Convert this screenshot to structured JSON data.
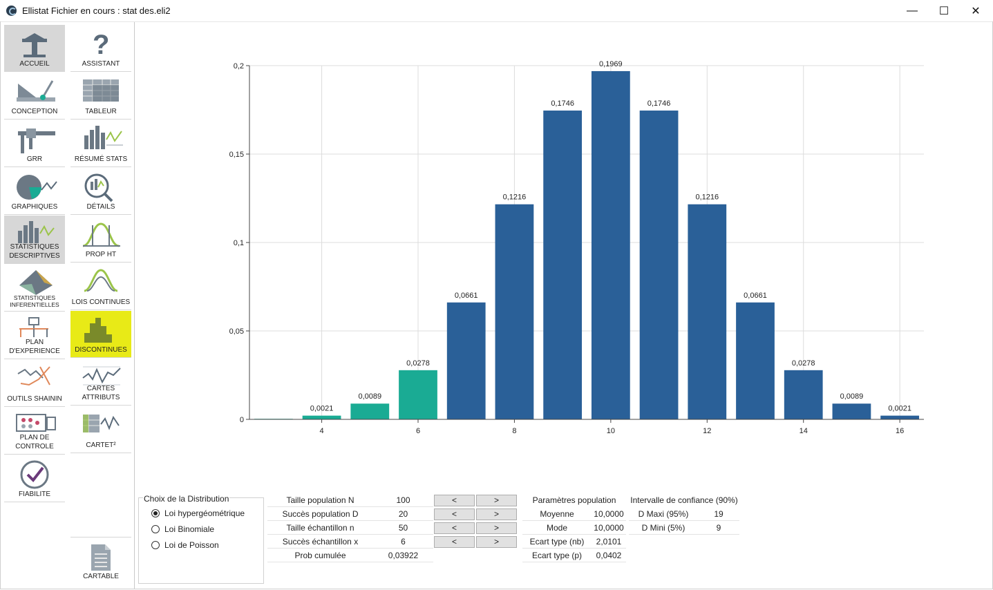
{
  "window": {
    "title": "Ellistat Fichier en cours : stat des.eli2",
    "minimize": "—",
    "maximize": "☐",
    "close": "✕"
  },
  "nav_col1": [
    {
      "label": "ACCUEIL",
      "icon": "home-icon"
    },
    {
      "label": "CONCEPTION",
      "icon": "design-tools-icon"
    },
    {
      "label": "GRR",
      "icon": "caliper-icon"
    },
    {
      "label": "GRAPHIQUES",
      "icon": "pie-chart-icon"
    },
    {
      "label": "STATISTIQUES DESCRIPTIVES",
      "icon": "bar-chart-icon"
    },
    {
      "label": "STATISTIQUES INFERENTIELLES",
      "icon": "surface-3d-icon"
    },
    {
      "label": "PLAN D'EXPERIENCE",
      "icon": "tree-diagram-icon"
    },
    {
      "label": "OUTILS SHAININ",
      "icon": "line-cross-icon"
    },
    {
      "label": "PLAN DE CONTROLE",
      "icon": "control-plan-icon"
    },
    {
      "label": "FIABILITE",
      "icon": "check-circle-icon"
    }
  ],
  "nav_col2": [
    {
      "label": "ASSISTANT",
      "icon": "question-icon"
    },
    {
      "label": "TABLEUR",
      "icon": "spreadsheet-icon"
    },
    {
      "label": "RÉSUMÉ STATS",
      "icon": "stats-summary-icon"
    },
    {
      "label": "DÉTAILS",
      "icon": "magnifier-chart-icon"
    },
    {
      "label": "PROP HT",
      "icon": "bell-curve-icon"
    },
    {
      "label": "LOIS CONTINUES",
      "icon": "continuous-law-icon"
    },
    {
      "label": "DISCONTINUES",
      "icon": "histogram-icon"
    },
    {
      "label": "CARTES ATTRIBUTS",
      "icon": "attribute-chart-icon"
    },
    {
      "label": "CARTET²",
      "icon": "cartet-icon"
    },
    {
      "label": "CARTABLE",
      "icon": "document-icon"
    }
  ],
  "colors": {
    "main": "#2a6098",
    "highlight": "#1aab94",
    "grid": "#dcdcdc",
    "nav_highlight": "#e8ea17"
  },
  "chart_data": {
    "type": "bar",
    "x": [
      3,
      4,
      5,
      6,
      7,
      8,
      9,
      10,
      11,
      12,
      13,
      14,
      15,
      16
    ],
    "values": [
      0.0003,
      0.0021,
      0.0089,
      0.0278,
      0.0661,
      0.1216,
      0.1746,
      0.1969,
      0.1746,
      0.1216,
      0.0661,
      0.0278,
      0.0089,
      0.0021
    ],
    "data_labels": [
      "",
      "0,0021",
      "0,0089",
      "0,0278",
      "0,0661",
      "0,1216",
      "0,1746",
      "0,1969",
      "0,1746",
      "0,1216",
      "0,0661",
      "0,0278",
      "0,0089",
      "0,0021"
    ],
    "highlighted_x": [
      3,
      4,
      5,
      6
    ],
    "x_ticks": [
      "4",
      "6",
      "8",
      "10",
      "12",
      "14",
      "16"
    ],
    "y_ticks": [
      "0",
      "0,05",
      "0,1",
      "0,15",
      "0,2"
    ],
    "ylim": [
      0,
      0.2
    ],
    "grid": true
  },
  "distribution": {
    "title": "Choix de la Distribution",
    "options": [
      "Loi hypergéométrique",
      "Loi Binomiale",
      "Loi de Poisson"
    ],
    "selected": 0
  },
  "params": [
    {
      "label": "Taille population N",
      "value": "100"
    },
    {
      "label": "Succès population D",
      "value": "20"
    },
    {
      "label": "Taille échantillon n",
      "value": "50"
    },
    {
      "label": "Succès échantillon x",
      "value": "6"
    },
    {
      "label": "Prob cumulée",
      "value": "0,03922"
    }
  ],
  "stepper": {
    "dec": "<",
    "inc": ">"
  },
  "population": {
    "title": "Paramètres population",
    "rows": [
      {
        "label": "Moyenne",
        "value": "10,0000"
      },
      {
        "label": "Mode",
        "value": "10,0000"
      },
      {
        "label": "Ecart type (nb)",
        "value": "2,0101"
      },
      {
        "label": "Ecart type (p)",
        "value": "0,0402"
      }
    ]
  },
  "confidence": {
    "title": "Intervalle de confiance (90%)",
    "rows": [
      {
        "label": "D Maxi (95%)",
        "value": "19"
      },
      {
        "label": "D Mini (5%)",
        "value": "9"
      }
    ]
  }
}
